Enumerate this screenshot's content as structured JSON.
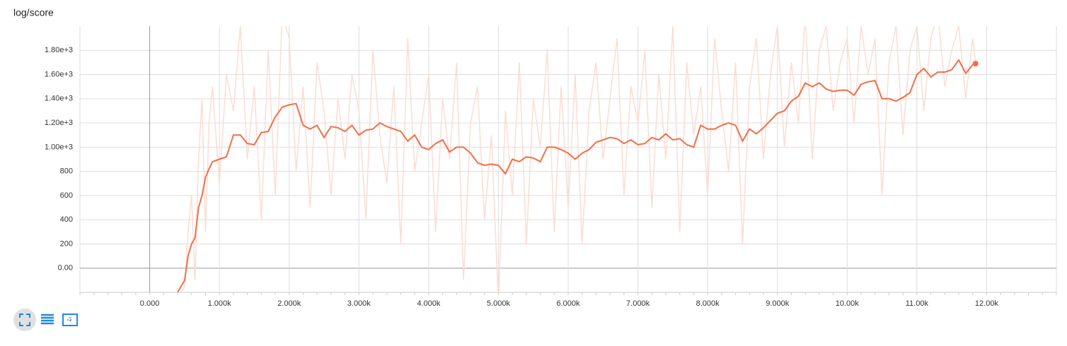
{
  "chart_data": {
    "type": "line",
    "title": "log/score",
    "x": [
      400,
      500,
      550,
      600,
      650,
      700,
      750,
      800,
      850,
      900,
      1000,
      1100,
      1200,
      1300,
      1400,
      1500,
      1600,
      1700,
      1800,
      1900,
      2000,
      2100,
      2200,
      2300,
      2400,
      2500,
      2600,
      2700,
      2800,
      2900,
      3000,
      3100,
      3200,
      3300,
      3400,
      3500,
      3600,
      3700,
      3800,
      3900,
      4000,
      4100,
      4200,
      4300,
      4400,
      4500,
      4600,
      4700,
      4800,
      4900,
      5000,
      5100,
      5200,
      5300,
      5400,
      5500,
      5600,
      5700,
      5800,
      5900,
      6000,
      6100,
      6200,
      6300,
      6400,
      6500,
      6600,
      6700,
      6800,
      6900,
      7000,
      7100,
      7200,
      7300,
      7400,
      7500,
      7600,
      7700,
      7800,
      7900,
      8000,
      8100,
      8200,
      8300,
      8400,
      8500,
      8600,
      8700,
      8800,
      8900,
      9000,
      9100,
      9200,
      9300,
      9400,
      9500,
      9600,
      9700,
      9800,
      9900,
      10000,
      10100,
      10200,
      10300,
      10400,
      10500,
      10600,
      10700,
      10800,
      10900,
      11000,
      11100,
      11200,
      11300,
      11400,
      11500,
      11600,
      11700,
      11800,
      11840
    ],
    "series": [
      {
        "color": "#fcdcd2",
        "values": [
          -250,
          -150,
          300,
          600,
          -100,
          900,
          1400,
          300,
          1200,
          1500,
          700,
          1600,
          1300,
          2000,
          900,
          1500,
          400,
          1800,
          600,
          2100,
          1900,
          800,
          1500,
          500,
          1700,
          1300,
          600,
          1400,
          900,
          1600,
          1300,
          400,
          1800,
          1100,
          700,
          1500,
          200,
          1900,
          800,
          1200,
          1600,
          300,
          1400,
          900,
          1700,
          -100,
          1200,
          1500,
          400,
          1100,
          -300,
          1300,
          600,
          1700,
          200,
          1400,
          1000,
          1800,
          300,
          1500,
          500,
          1600,
          200,
          1300,
          1700,
          900,
          1400,
          1900,
          600,
          1500,
          1200,
          1800,
          500,
          1600,
          900,
          2000,
          300,
          1700,
          1100,
          1500,
          600,
          1900,
          1300,
          800,
          1700,
          200,
          1500,
          1900,
          900,
          1600,
          2000,
          1000,
          1700,
          1200,
          2100,
          900,
          1800,
          2000,
          1300,
          1700,
          1900,
          1200,
          2000,
          1600,
          1900,
          600,
          1700,
          2000,
          1100,
          1800,
          2000,
          1300,
          1900,
          2100,
          1500,
          1800,
          2000,
          1400,
          1900,
          1700
        ]
      },
      {
        "color": "#f26e46",
        "values": [
          -200,
          -100,
          100,
          200,
          250,
          500,
          600,
          750,
          820,
          880,
          900,
          920,
          1100,
          1100,
          1030,
          1020,
          1120,
          1130,
          1250,
          1330,
          1350,
          1360,
          1180,
          1150,
          1180,
          1080,
          1170,
          1160,
          1130,
          1180,
          1100,
          1140,
          1150,
          1200,
          1170,
          1150,
          1130,
          1050,
          1100,
          1000,
          980,
          1030,
          1060,
          960,
          1000,
          1000,
          950,
          870,
          850,
          860,
          850,
          780,
          900,
          880,
          920,
          910,
          880,
          1000,
          1000,
          980,
          950,
          900,
          950,
          980,
          1040,
          1060,
          1080,
          1070,
          1030,
          1060,
          1020,
          1030,
          1080,
          1060,
          1110,
          1060,
          1070,
          1020,
          1000,
          1180,
          1150,
          1150,
          1180,
          1200,
          1180,
          1050,
          1150,
          1110,
          1160,
          1220,
          1280,
          1300,
          1380,
          1420,
          1530,
          1500,
          1530,
          1480,
          1460,
          1470,
          1470,
          1430,
          1520,
          1540,
          1550,
          1400,
          1400,
          1380,
          1410,
          1450,
          1600,
          1650,
          1580,
          1620,
          1620,
          1640,
          1720,
          1610,
          1680,
          1690
        ]
      }
    ],
    "xlim": [
      -1000,
      13000
    ],
    "ylim": [
      -200,
      2000
    ],
    "xticks": [
      {
        "value": 0,
        "label": "0.000"
      },
      {
        "value": 1000,
        "label": "1.000k"
      },
      {
        "value": 2000,
        "label": "2.000k"
      },
      {
        "value": 3000,
        "label": "3.000k"
      },
      {
        "value": 4000,
        "label": "4.000k"
      },
      {
        "value": 5000,
        "label": "5.000k"
      },
      {
        "value": 6000,
        "label": "6.000k"
      },
      {
        "value": 7000,
        "label": "7.000k"
      },
      {
        "value": 8000,
        "label": "8.000k"
      },
      {
        "value": 9000,
        "label": "9.000k"
      },
      {
        "value": 10000,
        "label": "10.00k"
      },
      {
        "value": 11000,
        "label": "11.00k"
      },
      {
        "value": 12000,
        "label": "12.00k"
      }
    ],
    "yticks": [
      {
        "value": 0,
        "label": "0.00"
      },
      200,
      400,
      600,
      800,
      {
        "value": 1000,
        "label": "1.00e+3"
      },
      {
        "value": 1200,
        "label": "1.20e+3"
      },
      {
        "value": 1400,
        "label": "1.40e+3"
      },
      {
        "value": 1600,
        "label": "1.60e+3"
      },
      {
        "value": 1800,
        "label": "1.80e+3"
      }
    ],
    "grid": true
  }
}
